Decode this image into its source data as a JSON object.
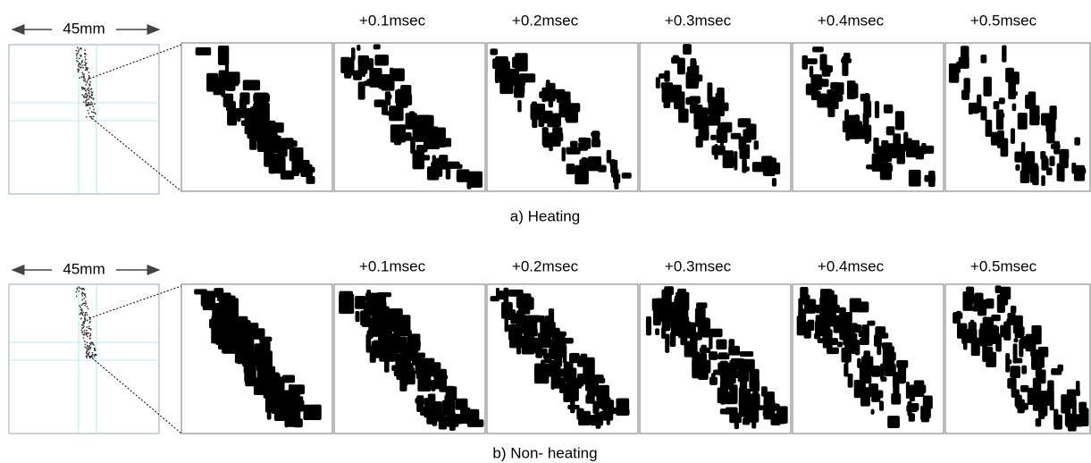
{
  "panels": [
    {
      "scale_label": "45mm",
      "frame_labels": [
        "+0.1msec",
        "+0.2msec",
        "+0.3msec",
        "+0.4msec",
        "+0.5msec"
      ],
      "caption": "a) Heating"
    },
    {
      "scale_label": "45mm",
      "frame_labels": [
        "+0.1msec",
        "+0.2msec",
        "+0.3msec",
        "+0.4msec",
        "+0.5msec"
      ],
      "caption": "b) Non- heating"
    }
  ]
}
